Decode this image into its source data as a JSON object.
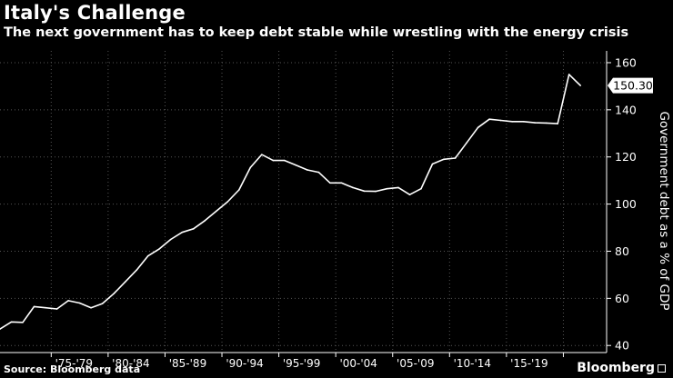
{
  "title": "Italy's Challenge",
  "subtitle": "The next government has to keep debt stable while wrestling with the energy crisis",
  "source": "Source: Bloomberg data",
  "brand": "Bloomberg",
  "colors": {
    "background": "#000000",
    "line": "#ffffff",
    "grid": "#555555",
    "text": "#ffffff"
  },
  "chart_data": {
    "type": "line",
    "title": "Italy's Challenge",
    "subtitle": "The next government has to keep debt stable while wrestling with the energy crisis",
    "xlabel": "",
    "ylabel": "Government debt as a % of GDP",
    "ylim": [
      37,
      165
    ],
    "xlim": [
      1970.5,
      2023.8
    ],
    "yticks": [
      40,
      60,
      80,
      100,
      120,
      140,
      160
    ],
    "xtick_labels": [
      "'75-'79",
      "'80-'84",
      "'85-'89",
      "'90-'94",
      "'95-'99",
      "'00-'04",
      "'05-'09",
      "'10-'14",
      "'15-'19"
    ],
    "xtick_centers": [
      1977,
      1982,
      1987,
      1992,
      1997,
      2002,
      2007,
      2012,
      2017
    ],
    "grid": true,
    "last_value_label": "150.30",
    "series": [
      {
        "name": "",
        "x": [
          1970.5,
          1971.5,
          1972.5,
          1973.5,
          1974.5,
          1975.5,
          1976.5,
          1977.5,
          1978.5,
          1979.5,
          1980.5,
          1981.5,
          1982.5,
          1983.5,
          1984.5,
          1985.5,
          1986.5,
          1987.5,
          1988.5,
          1989.5,
          1990.5,
          1991.5,
          1992.5,
          1993.5,
          1994.5,
          1995.5,
          1996.5,
          1997.5,
          1998.5,
          1999.5,
          2000.5,
          2001.5,
          2002.5,
          2003.5,
          2004.5,
          2005.5,
          2006.5,
          2007.5,
          2008.5,
          2009.5,
          2010.5,
          2011.5,
          2012.5,
          2013.5,
          2014.5,
          2015.5,
          2016.5,
          2017.5,
          2018.5,
          2019.5,
          2020.5,
          2021.5
        ],
        "y": [
          47,
          50,
          49.8,
          56.5,
          56,
          55.5,
          59,
          58,
          56,
          57.8,
          62,
          67,
          72,
          78,
          81,
          85,
          88,
          89.5,
          93,
          97,
          101,
          106,
          115.5,
          121,
          118.5,
          118.5,
          116.5,
          114.5,
          113.5,
          109,
          109,
          107,
          105.5,
          105.4,
          106.5,
          107,
          104,
          106.5,
          117,
          119,
          119.5,
          126,
          132.5,
          136,
          135.5,
          135,
          135,
          134.5,
          134.4,
          134.1,
          155,
          150.3
        ]
      }
    ]
  }
}
